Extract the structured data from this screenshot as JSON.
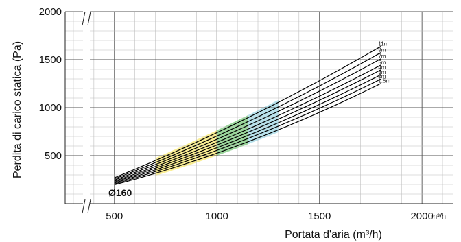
{
  "chart_data": {
    "type": "line",
    "xlabel": "Portata d'aria (m³/h)",
    "ylabel": "Perdita di carico statica (Pa)",
    "x_unit_label": "m³/h",
    "annotation": "Ø160",
    "xlim": [
      260,
      2150
    ],
    "ylim": [
      0,
      2000
    ],
    "x_ticks": [
      500,
      1000,
      1500,
      2000
    ],
    "y_ticks": [
      500,
      1000,
      1500,
      2000
    ],
    "grid": true,
    "axis_break": true,
    "series": [
      {
        "name": "11m",
        "x": [
          500,
          1000,
          1500,
          1800
        ],
        "y": [
          270,
          740,
          1280,
          1640
        ]
      },
      {
        "name": "9m",
        "x": [
          500,
          1000,
          1500,
          1800
        ],
        "y": [
          258,
          705,
          1225,
          1575
        ]
      },
      {
        "name": "7m",
        "x": [
          500,
          1000,
          1500,
          1800
        ],
        "y": [
          246,
          672,
          1170,
          1510
        ]
      },
      {
        "name": "5m",
        "x": [
          500,
          1000,
          1500,
          1800
        ],
        "y": [
          234,
          640,
          1118,
          1445
        ]
      },
      {
        "name": "4m",
        "x": [
          500,
          1000,
          1500,
          1800
        ],
        "y": [
          224,
          612,
          1075,
          1395
        ]
      },
      {
        "name": "3m",
        "x": [
          500,
          1000,
          1500,
          1800
        ],
        "y": [
          214,
          585,
          1030,
          1345
        ]
      },
      {
        "name": "2m",
        "x": [
          500,
          1000,
          1500,
          1800
        ],
        "y": [
          204,
          558,
          990,
          1300
        ]
      },
      {
        "name": "1.5m",
        "x": [
          500,
          1000,
          1500,
          1800
        ],
        "y": [
          195,
          530,
          945,
          1255
        ]
      }
    ],
    "bands": [
      {
        "color": "#f6e03c",
        "x_range": [
          700,
          1000
        ]
      },
      {
        "color": "#48b44a",
        "x_range": [
          1000,
          1150
        ]
      },
      {
        "color": "#7ecbdc",
        "x_range": [
          1150,
          1300
        ]
      }
    ]
  }
}
